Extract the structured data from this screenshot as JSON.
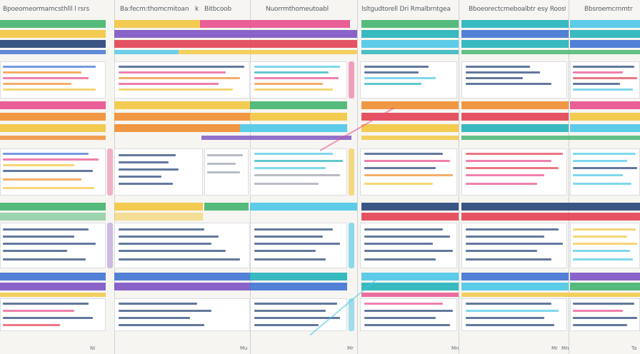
{
  "headers": [
    "Bpoeomeormamcsthlll l rsrs",
    "Ba:fecm:thomcmitoan",
    "k",
    "Bitbcoob",
    "Nuorrmthomeutoabl",
    "lsltgudtorell Dri Rmalbrntgea",
    "Bboeorectcmeboalbtr esy Roostr",
    "Bbsroemcrnmtr"
  ],
  "footer": [
    "Ni",
    "Mu",
    "Mr",
    "Mn",
    "Mr",
    "Mn",
    "Ta"
  ],
  "colors": {
    "green": "#3fb36b",
    "yellow": "#f2c53a",
    "orange": "#ef8a2a",
    "red": "#e23c4e",
    "pink": "#e84a8a",
    "purple": "#7a4fc0",
    "blue": "#3b6fd1",
    "teal": "#1fb0b8",
    "cyan": "#48c6e6",
    "navy": "#1f3f73"
  }
}
